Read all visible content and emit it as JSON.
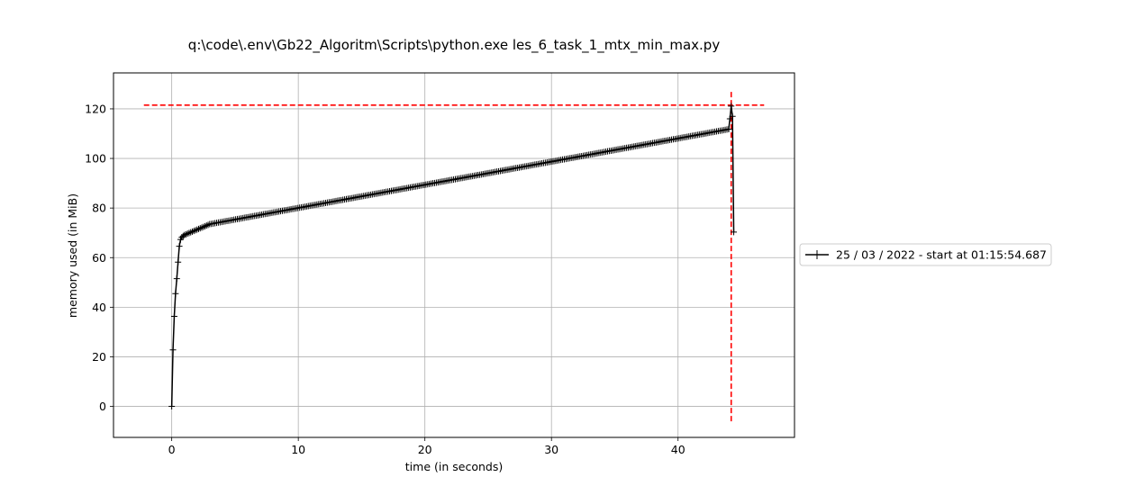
{
  "chart_data": {
    "type": "line",
    "title": "q:\\code\\.env\\Gb22_Algoritm\\Scripts\\python.exe les_6_task_1_mtx_min_max.py",
    "xlabel": "time (in seconds)",
    "ylabel": "memory used (in MiB)",
    "xlim": [
      -4.6,
      49.2
    ],
    "ylim": [
      -12.5,
      134.5
    ],
    "xticks": [
      0,
      10,
      20,
      30,
      40
    ],
    "yticks": [
      0,
      20,
      40,
      60,
      80,
      100,
      120
    ],
    "grid": true,
    "legend_position": "outside-right",
    "series": [
      {
        "name": "25 / 03 / 2022 - start at 01:15:54.687",
        "color": "#000000",
        "marker": "+",
        "segments": [
          {
            "x": [
              0.0,
              0.1,
              0.2,
              0.3,
              0.4,
              0.5,
              0.6,
              0.7,
              0.8,
              0.9,
              1.0
            ],
            "y": [
              0.0,
              22.8,
              36.3,
              45.5,
              51.5,
              58.2,
              64.6,
              67.3,
              68.2,
              68.7,
              69.1
            ]
          },
          {
            "from": [
              1.0,
              69.1
            ],
            "to": [
              3.0,
              73.5
            ],
            "count": 16
          },
          {
            "from": [
              3.0,
              73.5
            ],
            "to": [
              44.0,
              111.8
            ],
            "count": 300
          },
          {
            "x": [
              44.0,
              44.1,
              44.2,
              44.3,
              44.4
            ],
            "y": [
              111.8,
              116.0,
              121.1,
              117.0,
              70.3
            ]
          }
        ]
      }
    ],
    "reference_lines": [
      {
        "orientation": "horizontal",
        "value": 121.5,
        "from": -2.2,
        "to": 46.8,
        "color": "#ff0000",
        "style": "dashed"
      },
      {
        "orientation": "vertical",
        "value": 44.2,
        "from": -6.0,
        "to": 127.5,
        "color": "#ff0000",
        "style": "dashed"
      }
    ]
  }
}
